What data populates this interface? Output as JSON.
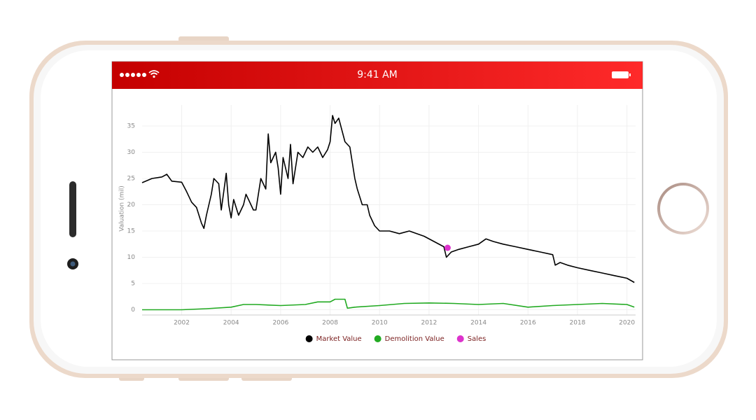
{
  "status_bar": {
    "time": "9:41 AM"
  },
  "chart_data": {
    "type": "line",
    "y_label": "Valuation (mil)",
    "xlim": [
      2000.4,
      2020.35
    ],
    "xticks": [
      2002,
      2004,
      2006,
      2008,
      2010,
      2012,
      2014,
      2016,
      2018,
      2020
    ],
    "ylim": [
      -1,
      39
    ],
    "yticks": [
      0,
      5,
      10,
      15,
      20,
      25,
      30,
      35
    ],
    "grid": true,
    "series": [
      {
        "name": "Market Value",
        "color": "#000000",
        "mode": "lines",
        "x": [
          2000.4,
          2000.8,
          2001.2,
          2001.4,
          2001.6,
          2002.0,
          2002.2,
          2002.4,
          2002.6,
          2002.8,
          2002.9,
          2003.0,
          2003.2,
          2003.3,
          2003.5,
          2003.6,
          2003.8,
          2003.9,
          2004.0,
          2004.1,
          2004.3,
          2004.5,
          2004.6,
          2004.7,
          2004.9,
          2005.0,
          2005.2,
          2005.4,
          2005.5,
          2005.6,
          2005.8,
          2005.9,
          2006.0,
          2006.1,
          2006.3,
          2006.4,
          2006.5,
          2006.7,
          2006.9,
          2007.1,
          2007.3,
          2007.5,
          2007.7,
          2007.9,
          2008.0,
          2008.1,
          2008.2,
          2008.35,
          2008.6,
          2008.8,
          2009.0,
          2009.1,
          2009.3,
          2009.5,
          2009.6,
          2009.8,
          2010.0,
          2010.4,
          2010.8,
          2011.2,
          2011.5,
          2011.8,
          2012.2,
          2012.6,
          2012.7,
          2012.9,
          2013.2,
          2013.6,
          2014.0,
          2014.3,
          2014.6,
          2015.0,
          2015.5,
          2016.0,
          2016.5,
          2017.0,
          2017.1,
          2017.3,
          2017.6,
          2018.0,
          2018.5,
          2019.0,
          2019.5,
          2020.0,
          2020.3
        ],
        "values": [
          24.2,
          25,
          25.3,
          25.8,
          24.5,
          24.3,
          22.5,
          20.5,
          19.5,
          16.5,
          15.5,
          18,
          22,
          25,
          24,
          19,
          26,
          20,
          17.5,
          21,
          18,
          20,
          22,
          21,
          19,
          19,
          25,
          23,
          33.5,
          28,
          30,
          27,
          22,
          29,
          25,
          31.5,
          24,
          30,
          29,
          31,
          30,
          31,
          29,
          30.5,
          32,
          37,
          35.5,
          36.5,
          32,
          31,
          25,
          23,
          20,
          20,
          18,
          16,
          15,
          15,
          14.5,
          15,
          14.5,
          14,
          13,
          12,
          10,
          11,
          11.5,
          12,
          12.5,
          13.5,
          13,
          12.5,
          12,
          11.5,
          11,
          10.5,
          8.5,
          9,
          8.5,
          8,
          7.5,
          7,
          6.5,
          6,
          5.2
        ]
      },
      {
        "name": "Demolition Value",
        "color": "#22aa22",
        "mode": "lines",
        "x": [
          2000.4,
          2002.0,
          2003.0,
          2004.0,
          2004.5,
          2005.0,
          2006.0,
          2007.0,
          2007.5,
          2008.0,
          2008.2,
          2008.6,
          2008.7,
          2009.0,
          2010.0,
          2011.0,
          2012.0,
          2013.0,
          2014.0,
          2015.0,
          2016.0,
          2017.0,
          2018.0,
          2019.0,
          2020.0,
          2020.3
        ],
        "values": [
          0,
          0,
          0.2,
          0.5,
          1,
          1,
          0.8,
          1,
          1.5,
          1.5,
          2,
          2,
          0.3,
          0.5,
          0.8,
          1.2,
          1.3,
          1.2,
          1,
          1.2,
          0.5,
          0.8,
          1,
          1.2,
          1,
          0.5
        ]
      },
      {
        "name": "Sales",
        "color": "#dd33cc",
        "mode": "markers",
        "x": [
          2012.75
        ],
        "values": [
          11.8
        ]
      }
    ]
  }
}
